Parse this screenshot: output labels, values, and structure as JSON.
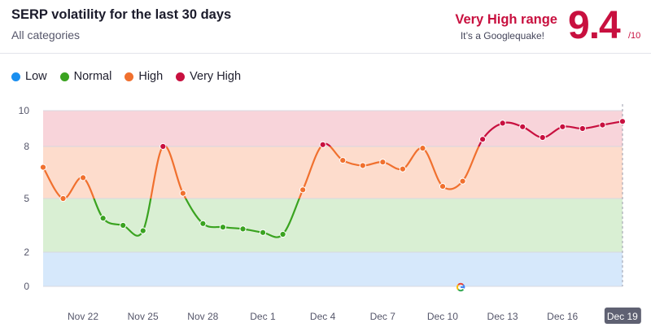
{
  "header": {
    "title": "SERP volatility for the last 30 days",
    "subtitle": "All categories",
    "range_label": "Very High range",
    "range_sub": "It’s a Googlequake!",
    "score": "9.4",
    "score_den": "/10"
  },
  "legend": [
    {
      "label": "Low",
      "color": "#1a8ff0"
    },
    {
      "label": "Normal",
      "color": "#3aa320"
    },
    {
      "label": "High",
      "color": "#f0702e"
    },
    {
      "label": "Very High",
      "color": "#c8103f"
    }
  ],
  "google_marker_icon": "google-g-icon",
  "chart_data": {
    "type": "line",
    "title": "SERP volatility for the last 30 days",
    "xlabel": "",
    "ylabel": "",
    "ylim": [
      0,
      10
    ],
    "yticks": [
      0,
      2,
      5,
      8,
      10
    ],
    "zones": [
      {
        "name": "Low",
        "from": 0,
        "to": 2,
        "color": "#d6e8fb"
      },
      {
        "name": "Normal",
        "from": 2,
        "to": 5,
        "color": "#d9efd3"
      },
      {
        "name": "High",
        "from": 5,
        "to": 8,
        "color": "#fddccc"
      },
      {
        "name": "Very High",
        "from": 8,
        "to": 10,
        "color": "#f8d4da"
      }
    ],
    "x_tick_labels": [
      "Nov 22",
      "Nov 25",
      "Nov 28",
      "Dec 1",
      "Dec 4",
      "Dec 7",
      "Dec 10",
      "Dec 13",
      "Dec 16",
      "Dec 19"
    ],
    "x": [
      "Nov 20",
      "Nov 21",
      "Nov 22",
      "Nov 23",
      "Nov 24",
      "Nov 25",
      "Nov 26",
      "Nov 27",
      "Nov 28",
      "Nov 29",
      "Nov 30",
      "Dec 1",
      "Dec 2",
      "Dec 3",
      "Dec 4",
      "Dec 5",
      "Dec 6",
      "Dec 7",
      "Dec 8",
      "Dec 9",
      "Dec 10",
      "Dec 11",
      "Dec 12",
      "Dec 13",
      "Dec 14",
      "Dec 15",
      "Dec 16",
      "Dec 17",
      "Dec 18",
      "Dec 19"
    ],
    "values": [
      6.8,
      5.0,
      6.2,
      3.9,
      3.5,
      3.2,
      8.0,
      5.3,
      3.6,
      3.4,
      3.3,
      3.1,
      3.0,
      5.5,
      8.1,
      7.2,
      6.9,
      7.1,
      6.7,
      7.9,
      5.7,
      6.0,
      8.4,
      9.3,
      9.1,
      8.5,
      9.1,
      9.0,
      9.2,
      9.4
    ],
    "google_update_marker": "Dec 12"
  }
}
